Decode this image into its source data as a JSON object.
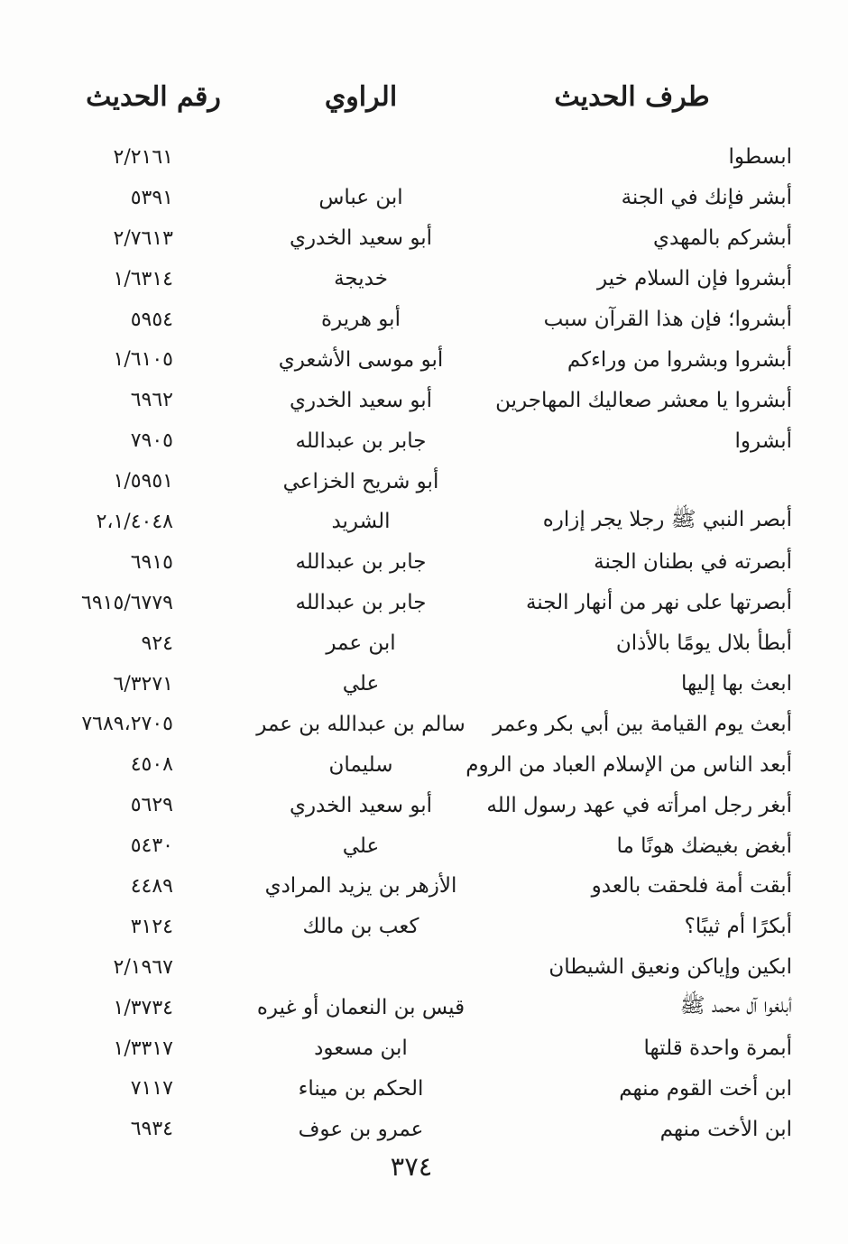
{
  "page": {
    "background": "#fdfdfc",
    "text_color": "#1c1c1c",
    "page_number": "٣٧٤"
  },
  "header": {
    "hadith_label": "طرف الحديث",
    "narrator_label": "الراوي",
    "number_label": "رقم الحديث"
  },
  "rows": [
    {
      "hadith": "ابسطوا",
      "narrator": "",
      "number": "٢/٢١٦١"
    },
    {
      "hadith": "أبشر فإنك في الجنة",
      "narrator": "ابن عباس",
      "number": "٥٣٩١"
    },
    {
      "hadith": "أبشركم بالمهدي",
      "narrator": "أبو سعيد الخدري",
      "number": "٢/٧٦١٣"
    },
    {
      "hadith": "أبشروا فإن السلام خير",
      "narrator": "خديجة",
      "number": "١/٦٣١٤"
    },
    {
      "hadith": "أبشروا؛ فإن هذا القرآن سبب",
      "narrator": "أبو هريرة",
      "number": "٥٩٥٤"
    },
    {
      "hadith": "أبشروا وبشروا من وراءكم",
      "narrator": "أبو موسى الأشعري",
      "number": "١/٦١٠٥"
    },
    {
      "hadith": "أبشروا يا معشر صعاليك المهاجرين",
      "narrator": "أبو سعيد الخدري",
      "number": "٦٩٦٢"
    },
    {
      "hadith": "أبشروا",
      "narrator": "جابر بن عبدالله",
      "number": "٧٩٠٥"
    },
    {
      "hadith": "",
      "narrator": "أبو شريح الخزاعي",
      "number": "١/٥٩٥١"
    },
    {
      "hadith": "أبصر النبي ﷺ رجلا يجر إزاره",
      "narrator": "الشريد",
      "number": "٢،١/٤٠٤٨"
    },
    {
      "hadith": "أبصرته في بطنان الجنة",
      "narrator": "جابر بن عبدالله",
      "number": "٦٩١٥"
    },
    {
      "hadith": "أبصرتها على نهر من أنهار الجنة",
      "narrator": "جابر بن عبدالله",
      "number": "٦٩١٥/٦٧٧٩"
    },
    {
      "hadith": "أبطأ بلال يومًا بالأذان",
      "narrator": "ابن عمر",
      "number": "٩٢٤"
    },
    {
      "hadith": "ابعث بها إليها",
      "narrator": "علي",
      "number": "٦/٣٢٧١"
    },
    {
      "hadith": "أبعث يوم القيامة بين أبي بكر وعمر",
      "narrator": "سالم بن عبدالله بن عمر",
      "number": "٧٦٨٩،٢٧٠٥"
    },
    {
      "hadith": "أبعد الناس من الإسلام العباد من الروم",
      "narrator": "سليمان",
      "number": "٤٥٠٨"
    },
    {
      "hadith": "أبغر رجل امرأته في عهد رسول الله",
      "narrator": "أبو سعيد الخدري",
      "number": "٥٦٢٩"
    },
    {
      "hadith": "أبغض بغيضك هونًا ما",
      "narrator": "علي",
      "number": "٥٤٣٠"
    },
    {
      "hadith": "أبقت أمة فلحقت بالعدو",
      "narrator": "الأزهر بن يزيد المرادي",
      "number": "٤٤٨٩"
    },
    {
      "hadith": "أبكرًا أم ثيبًا؟",
      "narrator": "كعب بن مالك",
      "number": "٣١٢٤"
    },
    {
      "hadith": "ابكين وإياكن ونعيق الشيطان",
      "narrator": "",
      "number": "٢/١٩٦٧"
    },
    {
      "hadith": "أبلغوا آل محمد ﷺ",
      "narrator": "قيس بن النعمان أو غيره",
      "number": "١/٣٧٣٤"
    },
    {
      "hadith": "أبمرة واحدة قلتها",
      "narrator": "ابن مسعود",
      "number": "١/٣٣١٧"
    },
    {
      "hadith": "ابن أخت القوم منهم",
      "narrator": "الحكم بن ميناء",
      "number": "٧١١٧"
    },
    {
      "hadith": "ابن الأخت منهم",
      "narrator": "عمرو بن عوف",
      "number": "٦٩٣٤"
    }
  ]
}
